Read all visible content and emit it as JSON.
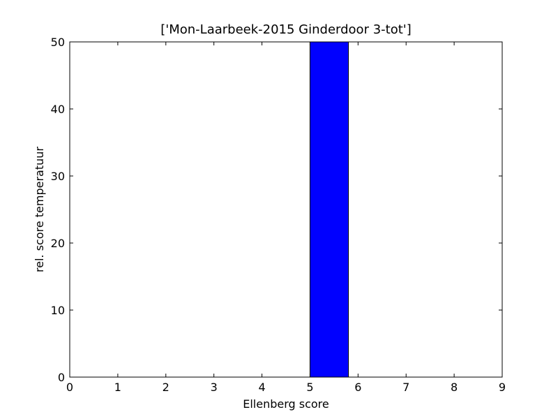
{
  "chart_data": {
    "type": "bar",
    "title": "['Mon-Laarbeek-2015 Ginderdoor 3-tot']",
    "xlabel": "Ellenberg score",
    "ylabel": "rel. score temperatuur",
    "x": [
      0,
      1,
      2,
      3,
      4,
      5,
      6,
      7,
      8
    ],
    "values": [
      0,
      0,
      0,
      0,
      0,
      50,
      0,
      0,
      0
    ],
    "bar_width": 0.8,
    "color": "#0000ff",
    "xlim": [
      0,
      9
    ],
    "xticks": [
      0,
      1,
      2,
      3,
      4,
      5,
      6,
      7,
      8,
      9
    ],
    "ylim": [
      0,
      50
    ],
    "yticks": [
      0,
      10,
      20,
      30,
      40,
      50
    ]
  }
}
